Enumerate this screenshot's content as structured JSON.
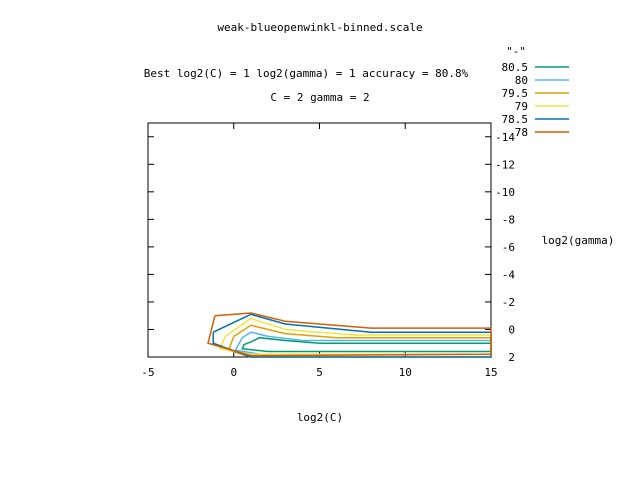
{
  "chart_data": {
    "type": "contour",
    "title": "weak-blueopenwinkl-binned.scale",
    "subtitle_lines": [
      "Best log2(C) = 1  log2(gamma) = 1  accuracy = 80.8%",
      "C = 2  gamma = 2"
    ],
    "xlabel": "log2(C)",
    "ylabel": "log2(gamma)",
    "xlim": [
      -5,
      15
    ],
    "ylim": [
      2,
      -15
    ],
    "y_reversed": true,
    "x_ticks": [
      -5,
      0,
      5,
      10,
      15
    ],
    "y_ticks": [
      -14,
      -12,
      -10,
      -8,
      -6,
      -4,
      -2,
      0,
      2
    ],
    "legend": {
      "title": "\"-\"",
      "placement": "top-right outside"
    },
    "series": [
      {
        "name": "80.5",
        "color": "#009e73",
        "points": [
          [
            1,
            0.9
          ],
          [
            1.5,
            0.6
          ],
          [
            3,
            0.8
          ],
          [
            5,
            1
          ],
          [
            15,
            1
          ],
          [
            15,
            1.6
          ],
          [
            2,
            1.6
          ],
          [
            0.5,
            1.4
          ],
          [
            0.6,
            1.1
          ],
          [
            1,
            0.9
          ]
        ]
      },
      {
        "name": "80",
        "color": "#56b4e9",
        "points": [
          [
            0.5,
            0.6
          ],
          [
            1,
            0.2
          ],
          [
            2,
            0.5
          ],
          [
            4,
            0.8
          ],
          [
            15,
            0.8
          ],
          [
            15,
            1.8
          ],
          [
            1.5,
            1.8
          ],
          [
            0.1,
            1.5
          ],
          [
            0.5,
            0.6
          ]
        ]
      },
      {
        "name": "79.5",
        "color": "#e69f00",
        "points": [
          [
            0,
            0.5
          ],
          [
            1,
            -0.3
          ],
          [
            3,
            0.3
          ],
          [
            6,
            0.6
          ],
          [
            15,
            0.6
          ],
          [
            15,
            2
          ],
          [
            1,
            2
          ],
          [
            -0.3,
            1.5
          ],
          [
            0,
            0.5
          ]
        ]
      },
      {
        "name": "79",
        "color": "#f0e442",
        "points": [
          [
            -0.5,
            0.5
          ],
          [
            1,
            -0.8
          ],
          [
            3,
            0
          ],
          [
            7,
            0.4
          ],
          [
            15,
            0.4
          ],
          [
            15,
            1.8
          ],
          [
            1,
            1.8
          ],
          [
            -0.8,
            1.4
          ],
          [
            -0.5,
            0.5
          ]
        ]
      },
      {
        "name": "78.5",
        "color": "#0072b2",
        "points": [
          [
            -1.2,
            0.2
          ],
          [
            1,
            -1.1
          ],
          [
            3,
            -0.4
          ],
          [
            8,
            0.2
          ],
          [
            15,
            0.2
          ],
          [
            15,
            2
          ],
          [
            1,
            2
          ],
          [
            -1.2,
            1
          ],
          [
            -1.2,
            0.2
          ]
        ]
      },
      {
        "name": "78",
        "color": "#d55e00",
        "points": [
          [
            -1.1,
            -1
          ],
          [
            1,
            -1.2
          ],
          [
            3,
            -0.6
          ],
          [
            8,
            -0.1
          ],
          [
            15,
            -0.1
          ],
          [
            15,
            1.8
          ],
          [
            1,
            1.9
          ],
          [
            -1.5,
            1
          ],
          [
            -1.1,
            -1
          ]
        ]
      }
    ]
  }
}
